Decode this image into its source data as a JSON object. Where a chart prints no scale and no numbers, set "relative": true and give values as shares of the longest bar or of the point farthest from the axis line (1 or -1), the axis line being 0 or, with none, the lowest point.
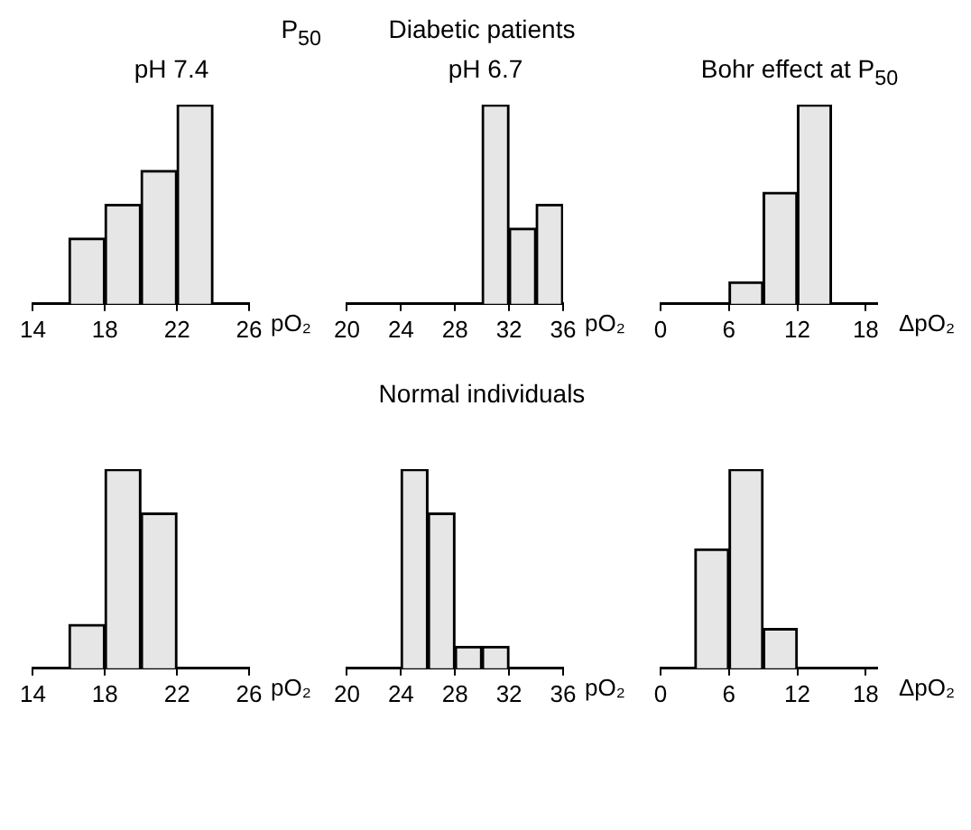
{
  "chart_data": [
    {
      "type": "bar",
      "title": "pH 7.4",
      "annotations": [
        "P$_{50}$"
      ],
      "xlabel": "pO₂",
      "relative": true,
      "x": [
        17,
        19,
        21,
        23
      ],
      "values": [
        0.33,
        0.5,
        0.67,
        1
      ],
      "color": "#e6e6e6",
      "xlim": [
        14,
        26
      ],
      "xticks": [
        14,
        18,
        22,
        26
      ]
    },
    {
      "type": "bar",
      "title": "pH 6.7",
      "annotations": [
        "Diabetic patients"
      ],
      "xlabel": "pO₂",
      "relative": true,
      "x": [
        31,
        33,
        35
      ],
      "values": [
        1,
        0.38,
        0.5
      ],
      "color": "#e6e6e6",
      "xlim": [
        20,
        36
      ],
      "xticks": [
        20,
        24,
        28,
        32,
        36
      ]
    },
    {
      "type": "bar",
      "title": "Bohr effect at P$_{50}$",
      "xlabel": "ΔpO₂",
      "relative": true,
      "x": [
        7.5,
        10.5,
        13.5
      ],
      "values": [
        0.11,
        0.56,
        1
      ],
      "color": "#e6e6e6",
      "xlim": [
        0,
        19
      ],
      "xticks": [
        0,
        6,
        12,
        18
      ]
    },
    {
      "type": "bar",
      "xlabel": "pO₂",
      "relative": true,
      "x": [
        17,
        19,
        21
      ],
      "values": [
        0.22,
        1,
        0.78
      ],
      "color": "#e6e6e6",
      "xlim": [
        14,
        26
      ],
      "xticks": [
        14,
        18,
        22,
        26
      ]
    },
    {
      "type": "bar",
      "annotations": [
        "Normal individuals"
      ],
      "xlabel": "pO₂",
      "relative": true,
      "x": [
        25,
        27,
        29,
        31
      ],
      "values": [
        1,
        0.78,
        0.11,
        0.11
      ],
      "color": "#e6e6e6",
      "xlim": [
        20,
        36
      ],
      "xticks": [
        20,
        24,
        28,
        32,
        36
      ]
    },
    {
      "type": "bar",
      "xlabel": "ΔpO₂",
      "relative": true,
      "x": [
        4.5,
        7.5,
        10.5
      ],
      "values": [
        0.6,
        1,
        0.2
      ],
      "color": "#e6e6e6",
      "xlim": [
        0,
        19
      ],
      "xticks": [
        0,
        6,
        12,
        18
      ]
    }
  ]
}
